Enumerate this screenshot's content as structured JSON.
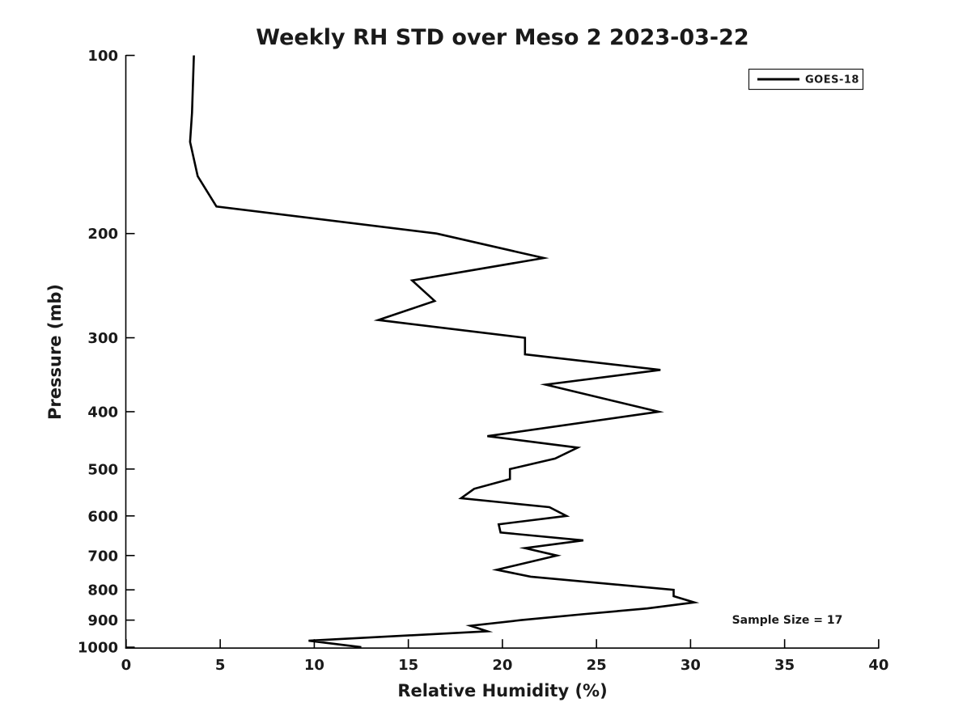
{
  "figure": {
    "background_color": "#ffffff",
    "text_color": "#1a1a1a",
    "line_color": "#000000"
  },
  "chart_data": {
    "type": "line",
    "title": "Weekly RH STD over Meso 2 2023-03-22",
    "xlabel": "Relative Humidity (%)",
    "ylabel": "Pressure (mb)",
    "x_ticks": [
      0,
      5,
      10,
      15,
      20,
      25,
      30,
      35,
      40
    ],
    "y_ticks": [
      100,
      200,
      300,
      400,
      500,
      600,
      700,
      800,
      900,
      1000
    ],
    "xlim": [
      0,
      40
    ],
    "ylim": [
      100,
      1003
    ],
    "y_scale": "log",
    "y_inverted": true,
    "grid": false,
    "legend": {
      "position": "top-right",
      "entries": [
        {
          "label": "GOES-18",
          "color": "#000000"
        }
      ]
    },
    "annotation": {
      "text": "Sample Size = 17"
    },
    "series": [
      {
        "name": "GOES-18",
        "color": "#000000",
        "line_width": 2.6,
        "points_rh_pressure": [
          [
            3.6,
            100
          ],
          [
            3.5,
            125
          ],
          [
            3.4,
            140
          ],
          [
            3.8,
            160
          ],
          [
            4.8,
            180
          ],
          [
            16.5,
            200
          ],
          [
            22.2,
            220
          ],
          [
            15.2,
            240
          ],
          [
            16.4,
            260
          ],
          [
            13.4,
            280
          ],
          [
            21.2,
            300
          ],
          [
            21.2,
            320
          ],
          [
            28.4,
            340
          ],
          [
            22.3,
            360
          ],
          [
            28.3,
            400
          ],
          [
            19.2,
            440
          ],
          [
            24.0,
            460
          ],
          [
            22.8,
            480
          ],
          [
            20.4,
            500
          ],
          [
            20.4,
            520
          ],
          [
            18.5,
            540
          ],
          [
            17.8,
            560
          ],
          [
            22.5,
            580
          ],
          [
            23.4,
            600
          ],
          [
            19.8,
            620
          ],
          [
            19.9,
            640
          ],
          [
            24.3,
            660
          ],
          [
            21.2,
            680
          ],
          [
            22.9,
            700
          ],
          [
            19.7,
            740
          ],
          [
            21.5,
            760
          ],
          [
            29.1,
            800
          ],
          [
            29.1,
            820
          ],
          [
            30.2,
            840
          ],
          [
            27.7,
            860
          ],
          [
            24.2,
            880
          ],
          [
            21.0,
            900
          ],
          [
            18.3,
            920
          ],
          [
            19.2,
            940
          ],
          [
            9.7,
            975
          ],
          [
            12.5,
            1000
          ]
        ]
      }
    ]
  }
}
